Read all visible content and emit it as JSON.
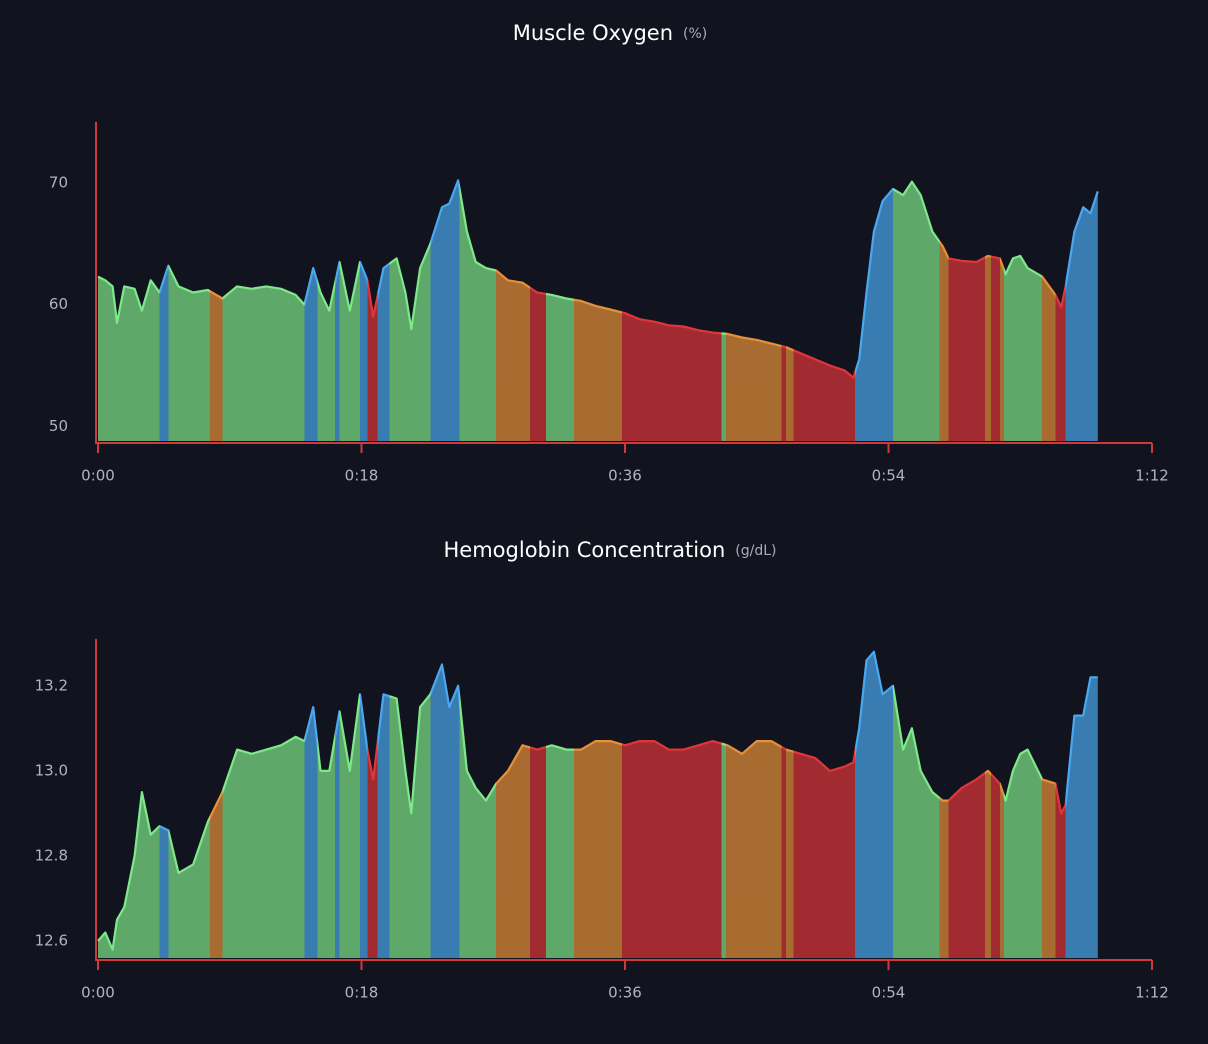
{
  "chart_data": [
    {
      "type": "area",
      "title": "Muscle Oxygen",
      "unit": "(%)",
      "x": [
        0,
        0.5,
        1,
        1.3,
        1.8,
        2.5,
        3,
        3.6,
        4.2,
        4.8,
        5.5,
        6.5,
        7.5,
        8.5,
        9.5,
        10.5,
        11.5,
        12.5,
        13.5,
        14.1,
        14.7,
        15.2,
        15.8,
        16.5,
        17.2,
        17.9,
        18.4,
        18.8,
        19.5,
        20.4,
        21,
        21.4,
        22,
        22.7,
        23.5,
        24,
        24.6,
        25.2,
        25.8,
        26.5,
        27.2,
        28,
        29,
        30,
        31,
        32,
        33,
        34,
        35,
        36,
        37,
        38,
        39,
        40,
        41,
        42,
        43,
        44,
        45,
        46,
        47,
        48,
        49,
        50,
        51,
        51.6,
        52,
        52.5,
        53,
        53.6,
        54.3,
        55,
        55.6,
        56.2,
        57,
        57.7,
        58.1,
        59,
        60,
        60.8,
        61.6,
        62,
        62.5,
        63,
        63.5,
        64.5,
        65.4,
        65.8,
        66.1,
        66.7,
        67.3,
        67.8,
        68.3
      ],
      "values": [
        62.3,
        62,
        61.5,
        58.5,
        61.5,
        61.3,
        59.5,
        62,
        61,
        63.2,
        61.5,
        61,
        61.2,
        60.5,
        61.5,
        61.3,
        61.5,
        61.3,
        60.8,
        60,
        63,
        61,
        59.5,
        63.5,
        59.5,
        63.5,
        62,
        59,
        63,
        63.8,
        61,
        58,
        63,
        65,
        68,
        68.3,
        70.2,
        66,
        63.5,
        63,
        62.8,
        62,
        61.8,
        61,
        60.8,
        60.5,
        60.3,
        59.9,
        59.6,
        59.3,
        58.8,
        58.6,
        58.3,
        58.2,
        57.9,
        57.7,
        57.6,
        57.3,
        57.1,
        56.8,
        56.5,
        56,
        55.5,
        55,
        54.6,
        54,
        55.5,
        61,
        66,
        68.5,
        69.5,
        69,
        70.1,
        69,
        66,
        64.8,
        63.8,
        63.6,
        63.5,
        64,
        63.8,
        62.5,
        63.8,
        64,
        63,
        62.3,
        60.8,
        59.8,
        61.5,
        66,
        68,
        67.5,
        69.3
      ],
      "xlim": [
        0,
        72
      ],
      "xticks": [
        {
          "value": 0,
          "label": "0:00"
        },
        {
          "value": 18,
          "label": "0:18"
        },
        {
          "value": 36,
          "label": "0:36"
        },
        {
          "value": 54,
          "label": "0:54"
        },
        {
          "value": 72,
          "label": "1:12"
        }
      ],
      "ylim": [
        48.8,
        75
      ],
      "yticks": [
        50,
        60,
        70
      ],
      "bands": [
        {
          "x0": 0,
          "x1": 4.2,
          "color": "#7ee88a"
        },
        {
          "x0": 4.2,
          "x1": 4.8,
          "color": "#4aa8f0"
        },
        {
          "x0": 4.8,
          "x1": 7.65,
          "color": "#7ee88a"
        },
        {
          "x0": 7.65,
          "x1": 8.5,
          "color": "#e89038"
        },
        {
          "x0": 8.5,
          "x1": 14.1,
          "color": "#7ee88a"
        },
        {
          "x0": 14.1,
          "x1": 15,
          "color": "#4aa8f0"
        },
        {
          "x0": 15,
          "x1": 16.2,
          "color": "#7ee88a"
        },
        {
          "x0": 16.2,
          "x1": 16.5,
          "color": "#4aa8f0"
        },
        {
          "x0": 16.5,
          "x1": 17.9,
          "color": "#7ee88a"
        },
        {
          "x0": 17.9,
          "x1": 18.4,
          "color": "#4aa8f0"
        },
        {
          "x0": 18.4,
          "x1": 19.1,
          "color": "#e0353a"
        },
        {
          "x0": 19.1,
          "x1": 19.9,
          "color": "#4aa8f0"
        },
        {
          "x0": 19.9,
          "x1": 22.7,
          "color": "#7ee88a"
        },
        {
          "x0": 22.7,
          "x1": 24.7,
          "color": "#4aa8f0"
        },
        {
          "x0": 24.7,
          "x1": 27.2,
          "color": "#7ee88a"
        },
        {
          "x0": 27.2,
          "x1": 29.5,
          "color": "#e89038"
        },
        {
          "x0": 29.5,
          "x1": 30.6,
          "color": "#e0353a"
        },
        {
          "x0": 30.6,
          "x1": 32.5,
          "color": "#7ee88a"
        },
        {
          "x0": 32.5,
          "x1": 35.8,
          "color": "#e89038"
        },
        {
          "x0": 35.8,
          "x1": 42.6,
          "color": "#e0353a"
        },
        {
          "x0": 42.6,
          "x1": 42.9,
          "color": "#7ee88a"
        },
        {
          "x0": 42.9,
          "x1": 46.7,
          "color": "#e89038"
        },
        {
          "x0": 46.7,
          "x1": 47,
          "color": "#e0353a"
        },
        {
          "x0": 47,
          "x1": 47.5,
          "color": "#e89038"
        },
        {
          "x0": 47.5,
          "x1": 51.7,
          "color": "#e0353a"
        },
        {
          "x0": 51.7,
          "x1": 54.3,
          "color": "#4aa8f0"
        },
        {
          "x0": 54.3,
          "x1": 57.5,
          "color": "#7ee88a"
        },
        {
          "x0": 57.5,
          "x1": 58.1,
          "color": "#e89038"
        },
        {
          "x0": 58.1,
          "x1": 60.6,
          "color": "#e0353a"
        },
        {
          "x0": 60.6,
          "x1": 61,
          "color": "#e89038"
        },
        {
          "x0": 61,
          "x1": 61.6,
          "color": "#e0353a"
        },
        {
          "x0": 61.6,
          "x1": 61.9,
          "color": "#e89038"
        },
        {
          "x0": 61.9,
          "x1": 64.5,
          "color": "#7ee88a"
        },
        {
          "x0": 64.5,
          "x1": 65.4,
          "color": "#e89038"
        },
        {
          "x0": 65.4,
          "x1": 66.1,
          "color": "#e0353a"
        },
        {
          "x0": 66.1,
          "x1": 68.3,
          "color": "#4aa8f0"
        }
      ]
    },
    {
      "type": "area",
      "title": "Hemoglobin Concentration",
      "unit": "(g/dL)",
      "x": [
        0,
        0.5,
        1,
        1.3,
        1.8,
        2.5,
        3,
        3.6,
        4.2,
        4.8,
        5.5,
        6.5,
        7.5,
        8.5,
        9.5,
        10.5,
        11.5,
        12.5,
        13.5,
        14.1,
        14.7,
        15.2,
        15.8,
        16.5,
        17.2,
        17.9,
        18.4,
        18.8,
        19.5,
        20.4,
        21,
        21.4,
        22,
        22.7,
        23.5,
        24,
        24.6,
        25.2,
        25.8,
        26.5,
        27.2,
        28,
        29,
        30,
        31,
        32,
        33,
        34,
        35,
        36,
        37,
        38,
        39,
        40,
        41,
        42,
        43,
        44,
        45,
        46,
        47,
        48,
        49,
        50,
        51,
        51.6,
        52,
        52.5,
        53,
        53.6,
        54.3,
        55,
        55.6,
        56.2,
        57,
        57.7,
        58.1,
        59,
        60,
        60.8,
        61.6,
        62,
        62.5,
        63,
        63.5,
        64.5,
        65.4,
        65.8,
        66.1,
        66.7,
        67.3,
        67.8,
        68.3
      ],
      "values": [
        12.6,
        12.62,
        12.58,
        12.65,
        12.68,
        12.8,
        12.95,
        12.85,
        12.87,
        12.86,
        12.76,
        12.78,
        12.88,
        12.95,
        13.05,
        13.04,
        13.05,
        13.06,
        13.08,
        13.07,
        13.15,
        13.0,
        13.0,
        13.14,
        13.0,
        13.18,
        13.05,
        12.98,
        13.18,
        13.17,
        13.0,
        12.9,
        13.15,
        13.18,
        13.25,
        13.15,
        13.2,
        13.0,
        12.96,
        12.93,
        12.97,
        13.0,
        13.06,
        13.05,
        13.06,
        13.05,
        13.05,
        13.07,
        13.07,
        13.06,
        13.07,
        13.07,
        13.05,
        13.05,
        13.06,
        13.07,
        13.06,
        13.04,
        13.07,
        13.07,
        13.05,
        13.04,
        13.03,
        13.0,
        13.01,
        13.02,
        13.1,
        13.26,
        13.28,
        13.18,
        13.2,
        13.05,
        13.1,
        13.0,
        12.95,
        12.93,
        12.93,
        12.96,
        12.98,
        13.0,
        12.97,
        12.93,
        13.0,
        13.04,
        13.05,
        12.98,
        12.97,
        12.9,
        12.92,
        13.13,
        13.13,
        13.22,
        13.22
      ],
      "xlim": [
        0,
        72
      ],
      "xticks": [
        {
          "value": 0,
          "label": "0:00"
        },
        {
          "value": 18,
          "label": "0:18"
        },
        {
          "value": 36,
          "label": "0:36"
        },
        {
          "value": 54,
          "label": "0:54"
        },
        {
          "value": 72,
          "label": "1:12"
        }
      ],
      "ylim": [
        12.56,
        13.31
      ],
      "yticks": [
        12.6,
        12.8,
        {
          "value": 13,
          "label": "13.0"
        },
        13.2
      ],
      "bands": [
        {
          "x0": 0,
          "x1": 4.2,
          "color": "#7ee88a"
        },
        {
          "x0": 4.2,
          "x1": 4.8,
          "color": "#4aa8f0"
        },
        {
          "x0": 4.8,
          "x1": 7.65,
          "color": "#7ee88a"
        },
        {
          "x0": 7.65,
          "x1": 8.5,
          "color": "#e89038"
        },
        {
          "x0": 8.5,
          "x1": 14.1,
          "color": "#7ee88a"
        },
        {
          "x0": 14.1,
          "x1": 15,
          "color": "#4aa8f0"
        },
        {
          "x0": 15,
          "x1": 16.2,
          "color": "#7ee88a"
        },
        {
          "x0": 16.2,
          "x1": 16.5,
          "color": "#4aa8f0"
        },
        {
          "x0": 16.5,
          "x1": 17.9,
          "color": "#7ee88a"
        },
        {
          "x0": 17.9,
          "x1": 18.4,
          "color": "#4aa8f0"
        },
        {
          "x0": 18.4,
          "x1": 19.1,
          "color": "#e0353a"
        },
        {
          "x0": 19.1,
          "x1": 19.9,
          "color": "#4aa8f0"
        },
        {
          "x0": 19.9,
          "x1": 22.7,
          "color": "#7ee88a"
        },
        {
          "x0": 22.7,
          "x1": 24.7,
          "color": "#4aa8f0"
        },
        {
          "x0": 24.7,
          "x1": 27.2,
          "color": "#7ee88a"
        },
        {
          "x0": 27.2,
          "x1": 29.5,
          "color": "#e89038"
        },
        {
          "x0": 29.5,
          "x1": 30.6,
          "color": "#e0353a"
        },
        {
          "x0": 30.6,
          "x1": 32.5,
          "color": "#7ee88a"
        },
        {
          "x0": 32.5,
          "x1": 35.8,
          "color": "#e89038"
        },
        {
          "x0": 35.8,
          "x1": 42.6,
          "color": "#e0353a"
        },
        {
          "x0": 42.6,
          "x1": 42.9,
          "color": "#7ee88a"
        },
        {
          "x0": 42.9,
          "x1": 46.7,
          "color": "#e89038"
        },
        {
          "x0": 46.7,
          "x1": 47,
          "color": "#e0353a"
        },
        {
          "x0": 47,
          "x1": 47.5,
          "color": "#e89038"
        },
        {
          "x0": 47.5,
          "x1": 51.7,
          "color": "#e0353a"
        },
        {
          "x0": 51.7,
          "x1": 54.3,
          "color": "#4aa8f0"
        },
        {
          "x0": 54.3,
          "x1": 57.5,
          "color": "#7ee88a"
        },
        {
          "x0": 57.5,
          "x1": 58.1,
          "color": "#e89038"
        },
        {
          "x0": 58.1,
          "x1": 60.6,
          "color": "#e0353a"
        },
        {
          "x0": 60.6,
          "x1": 61,
          "color": "#e89038"
        },
        {
          "x0": 61,
          "x1": 61.6,
          "color": "#e0353a"
        },
        {
          "x0": 61.6,
          "x1": 61.9,
          "color": "#e89038"
        },
        {
          "x0": 61.9,
          "x1": 64.5,
          "color": "#7ee88a"
        },
        {
          "x0": 64.5,
          "x1": 65.4,
          "color": "#e89038"
        },
        {
          "x0": 65.4,
          "x1": 66.1,
          "color": "#e0353a"
        },
        {
          "x0": 66.1,
          "x1": 68.3,
          "color": "#4aa8f0"
        }
      ]
    }
  ]
}
